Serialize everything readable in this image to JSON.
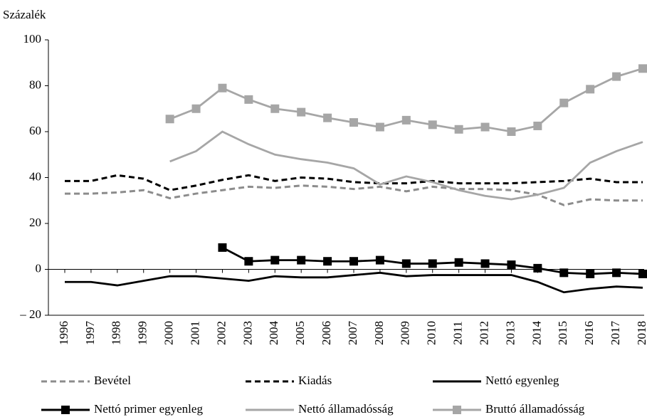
{
  "chart_data": {
    "type": "line",
    "y_label": "Százalék",
    "categories": [
      "1996",
      "1997",
      "1998",
      "1999",
      "2000",
      "2001",
      "2002",
      "2003",
      "2004",
      "2005",
      "2006",
      "2007",
      "2008",
      "2009",
      "2010",
      "2011",
      "2012",
      "2013",
      "2014",
      "2015",
      "2016",
      "2017",
      "2018"
    ],
    "ylim": [
      -20,
      100
    ],
    "yticks": [
      {
        "value": -20,
        "label": "– 20"
      },
      0,
      20,
      40,
      60,
      80,
      100
    ],
    "series": [
      {
        "name": "Bevétel",
        "color": "#8c8c8c",
        "dash": true,
        "values": [
          33,
          33,
          33.5,
          34.5,
          31,
          33,
          34.5,
          36,
          35.5,
          36.5,
          36,
          35,
          36,
          34,
          36,
          35,
          35,
          34.5,
          32.5,
          28,
          30.5,
          30,
          30
        ]
      },
      {
        "name": "Kiadás",
        "color": "#000000",
        "dash": true,
        "values": [
          38.5,
          38.5,
          41,
          39.5,
          34.5,
          36.5,
          39,
          41,
          38.5,
          40,
          39.5,
          38,
          37.5,
          37.5,
          38.5,
          37.5,
          37.5,
          37.5,
          38,
          38.5,
          39.5,
          38,
          38
        ]
      },
      {
        "name": "Nettó egyenleg",
        "color": "#000000",
        "values": [
          -5.5,
          -5.5,
          -7,
          -5,
          -3,
          -3,
          -4,
          -5,
          -3,
          -3.5,
          -3.5,
          -2.5,
          -1.5,
          -3,
          -2.5,
          -2.5,
          -2.5,
          -2.5,
          -5.5,
          -10,
          -8.5,
          -7.5,
          -8
        ]
      },
      {
        "name": "Nettó primer egyenleg",
        "color": "#000000",
        "marker": "square",
        "values": [
          null,
          null,
          null,
          null,
          null,
          null,
          9.5,
          3.5,
          4,
          4,
          3.5,
          3.5,
          4,
          2.5,
          2.5,
          3,
          2.5,
          2,
          0.5,
          -1.5,
          -2,
          -1.5,
          -2
        ]
      },
      {
        "name": "Nettó államadósság",
        "color": "#a6a6a6",
        "values": [
          null,
          null,
          null,
          null,
          47,
          51.5,
          60,
          54.5,
          50,
          48,
          46.5,
          44,
          37,
          40.5,
          38,
          34.5,
          32,
          30.5,
          32.5,
          35.5,
          46.5,
          51.5,
          55.5
        ]
      },
      {
        "name": "Bruttó államadósság",
        "color": "#a6a6a6",
        "marker": "square",
        "values": [
          null,
          null,
          null,
          null,
          65.5,
          70,
          79,
          74,
          70,
          68.5,
          66,
          64,
          62,
          65,
          63,
          61,
          62,
          60,
          62.5,
          72.5,
          78.5,
          84,
          87.5
        ]
      }
    ]
  }
}
